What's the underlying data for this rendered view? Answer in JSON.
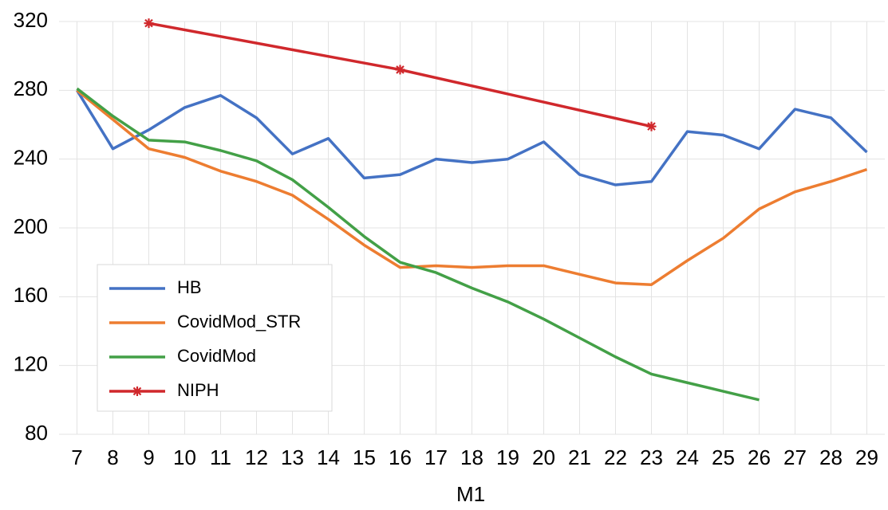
{
  "chart_data": {
    "type": "line",
    "x_label": "M1",
    "x": [
      7,
      8,
      9,
      10,
      11,
      12,
      13,
      14,
      15,
      16,
      17,
      18,
      19,
      20,
      21,
      22,
      23,
      24,
      25,
      26,
      27,
      28,
      29
    ],
    "xlim": [
      6.5,
      29.5
    ],
    "xticks": [
      7,
      8,
      9,
      10,
      11,
      12,
      13,
      14,
      15,
      16,
      17,
      18,
      19,
      20,
      21,
      22,
      23,
      24,
      25,
      26,
      27,
      28,
      29
    ],
    "ylim": [
      80,
      320
    ],
    "yticks": [
      80,
      120,
      160,
      200,
      240,
      280,
      320
    ],
    "grid": true,
    "legend": "lower left",
    "series": [
      {
        "name": "HB",
        "color": "#4472c4",
        "values": [
          280,
          246,
          257,
          270,
          277,
          264,
          243,
          252,
          229,
          231,
          240,
          238,
          240,
          250,
          231,
          225,
          227,
          256,
          254,
          246,
          269,
          264,
          244
        ]
      },
      {
        "name": "CovidMod_STR",
        "color": "#ed7d31",
        "values": [
          280,
          263,
          246,
          241,
          233,
          227,
          219,
          205,
          190,
          177,
          178,
          177,
          178,
          178,
          173,
          168,
          167,
          181,
          194,
          211,
          221,
          227,
          234
        ]
      },
      {
        "name": "CovidMod",
        "color": "#43a047",
        "values": [
          281,
          265,
          251,
          250,
          245,
          239,
          228,
          212,
          195,
          180,
          174,
          165,
          157,
          147,
          136,
          125,
          115,
          110,
          105,
          100,
          null,
          null,
          null
        ]
      },
      {
        "name": "NIPH",
        "color": "#d0282c",
        "marker": "asterisk",
        "x": [
          9,
          16,
          23
        ],
        "values": [
          319,
          292,
          259
        ]
      }
    ]
  }
}
